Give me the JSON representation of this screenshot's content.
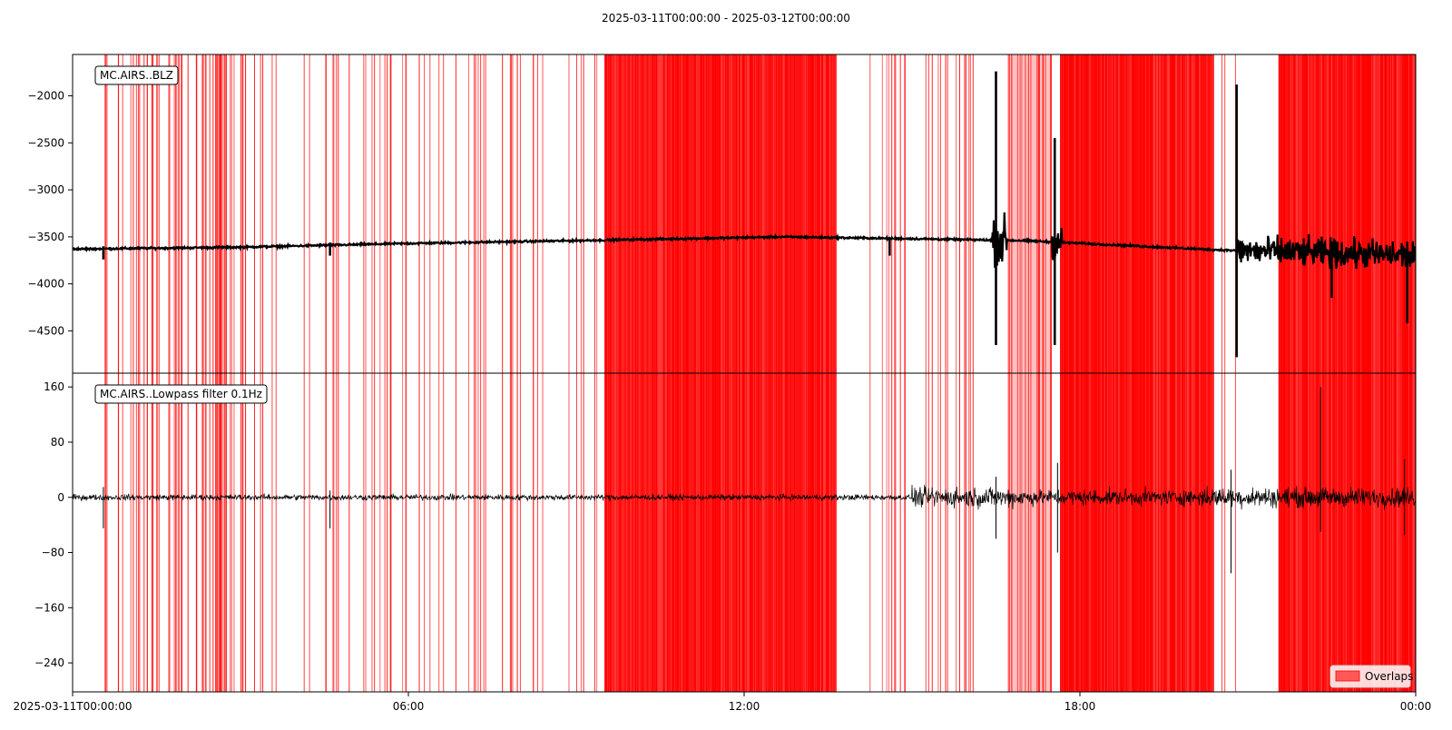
{
  "figure": {
    "title": "2025-03-11T00:00:00  -  2025-03-12T00:00:00"
  },
  "colors": {
    "overlap": "#ff0000",
    "trace": "#000000"
  },
  "chart_data": [
    {
      "type": "line",
      "label": "MC.AIRS..BLZ",
      "ylim": [
        -4950,
        -1560
      ],
      "yticks": [
        -2000,
        -2500,
        -3000,
        -3500,
        -4000,
        -4500
      ],
      "ytick_labels": [
        "−2000",
        "−2500",
        "−3000",
        "−3500",
        "−4000",
        "−4500"
      ],
      "baseline": [
        [
          0,
          -3630
        ],
        [
          3,
          -3610
        ],
        [
          6,
          -3570
        ],
        [
          9,
          -3540
        ],
        [
          12.7,
          -3500
        ],
        [
          15,
          -3520
        ],
        [
          17,
          -3540
        ],
        [
          20.5,
          -3640
        ],
        [
          24,
          -3700
        ]
      ],
      "spikes": [
        {
          "t": 0.55,
          "min": -3740,
          "max": -3600
        },
        {
          "t": 4.6,
          "min": -3700,
          "max": -3560
        },
        {
          "t": 14.6,
          "min": -3700,
          "max": -3510
        },
        {
          "t": 16.5,
          "min": -4650,
          "max": -1740
        },
        {
          "t": 17.55,
          "min": -4650,
          "max": -2450
        },
        {
          "t": 20.8,
          "min": -4780,
          "max": -1880
        },
        {
          "t": 22.5,
          "min": -4150,
          "max": -3550
        },
        {
          "t": 23.85,
          "min": -4420,
          "max": -3550
        }
      ],
      "noise_bands": [
        {
          "start": 16.4,
          "end": 16.7,
          "amp": 300
        },
        {
          "start": 17.5,
          "end": 17.7,
          "amp": 200
        },
        {
          "start": 20.8,
          "end": 24.0,
          "amp": 180
        }
      ]
    },
    {
      "type": "line",
      "label": "MC.AIRS..Lowpass filter 0.1Hz",
      "ylim": [
        -282,
        180
      ],
      "yticks": [
        160,
        80,
        0,
        -80,
        -160,
        -240
      ],
      "ytick_labels": [
        "160",
        "80",
        "0",
        "−80",
        "−160",
        "−240"
      ],
      "noise_level": 3,
      "noisy_segments": [
        {
          "start": 15.0,
          "end": 17.0,
          "amp": 10
        },
        {
          "start": 17.0,
          "end": 20.0,
          "amp": 8
        },
        {
          "start": 20.0,
          "end": 24.0,
          "amp": 10
        }
      ],
      "spikes": [
        {
          "t": 0.55,
          "min": -45,
          "max": 15
        },
        {
          "t": 4.6,
          "min": -45,
          "max": 10
        },
        {
          "t": 16.5,
          "min": -60,
          "max": 30
        },
        {
          "t": 17.6,
          "min": -80,
          "max": 50
        },
        {
          "t": 20.7,
          "min": -110,
          "max": 40
        },
        {
          "t": 22.3,
          "min": -50,
          "max": 160
        },
        {
          "t": 23.8,
          "min": -55,
          "max": 55
        }
      ]
    }
  ],
  "x_axis": {
    "range_hours": [
      0,
      24
    ],
    "ticks": [
      {
        "hour": 0,
        "label": "2025-03-11T00:00:00"
      },
      {
        "hour": 6,
        "label": "06:00"
      },
      {
        "hour": 12,
        "label": "12:00"
      },
      {
        "hour": 18,
        "label": "18:00"
      },
      {
        "hour": 24,
        "label": "00:00"
      }
    ]
  },
  "overlaps": {
    "sparse_regions": [
      {
        "start": 0.55,
        "end": 3.65,
        "count": 70
      },
      {
        "start": 4.0,
        "end": 9.5,
        "count": 50
      },
      {
        "start": 14.1,
        "end": 16.5,
        "count": 25
      },
      {
        "start": 16.7,
        "end": 17.5,
        "count": 18
      },
      {
        "start": 18.0,
        "end": 20.8,
        "count": 35
      }
    ],
    "dense_regions": [
      {
        "start": 9.5,
        "end": 13.65,
        "count": 260
      },
      {
        "start": 17.65,
        "end": 20.4,
        "count": 170
      },
      {
        "start": 21.55,
        "end": 24.0,
        "count": 200
      }
    ],
    "tint_regions": [
      {
        "start": 16.7,
        "end": 17.5
      },
      {
        "start": 17.65,
        "end": 19.1
      }
    ]
  },
  "legend": {
    "label": "Overlaps",
    "position": "lower-right"
  }
}
